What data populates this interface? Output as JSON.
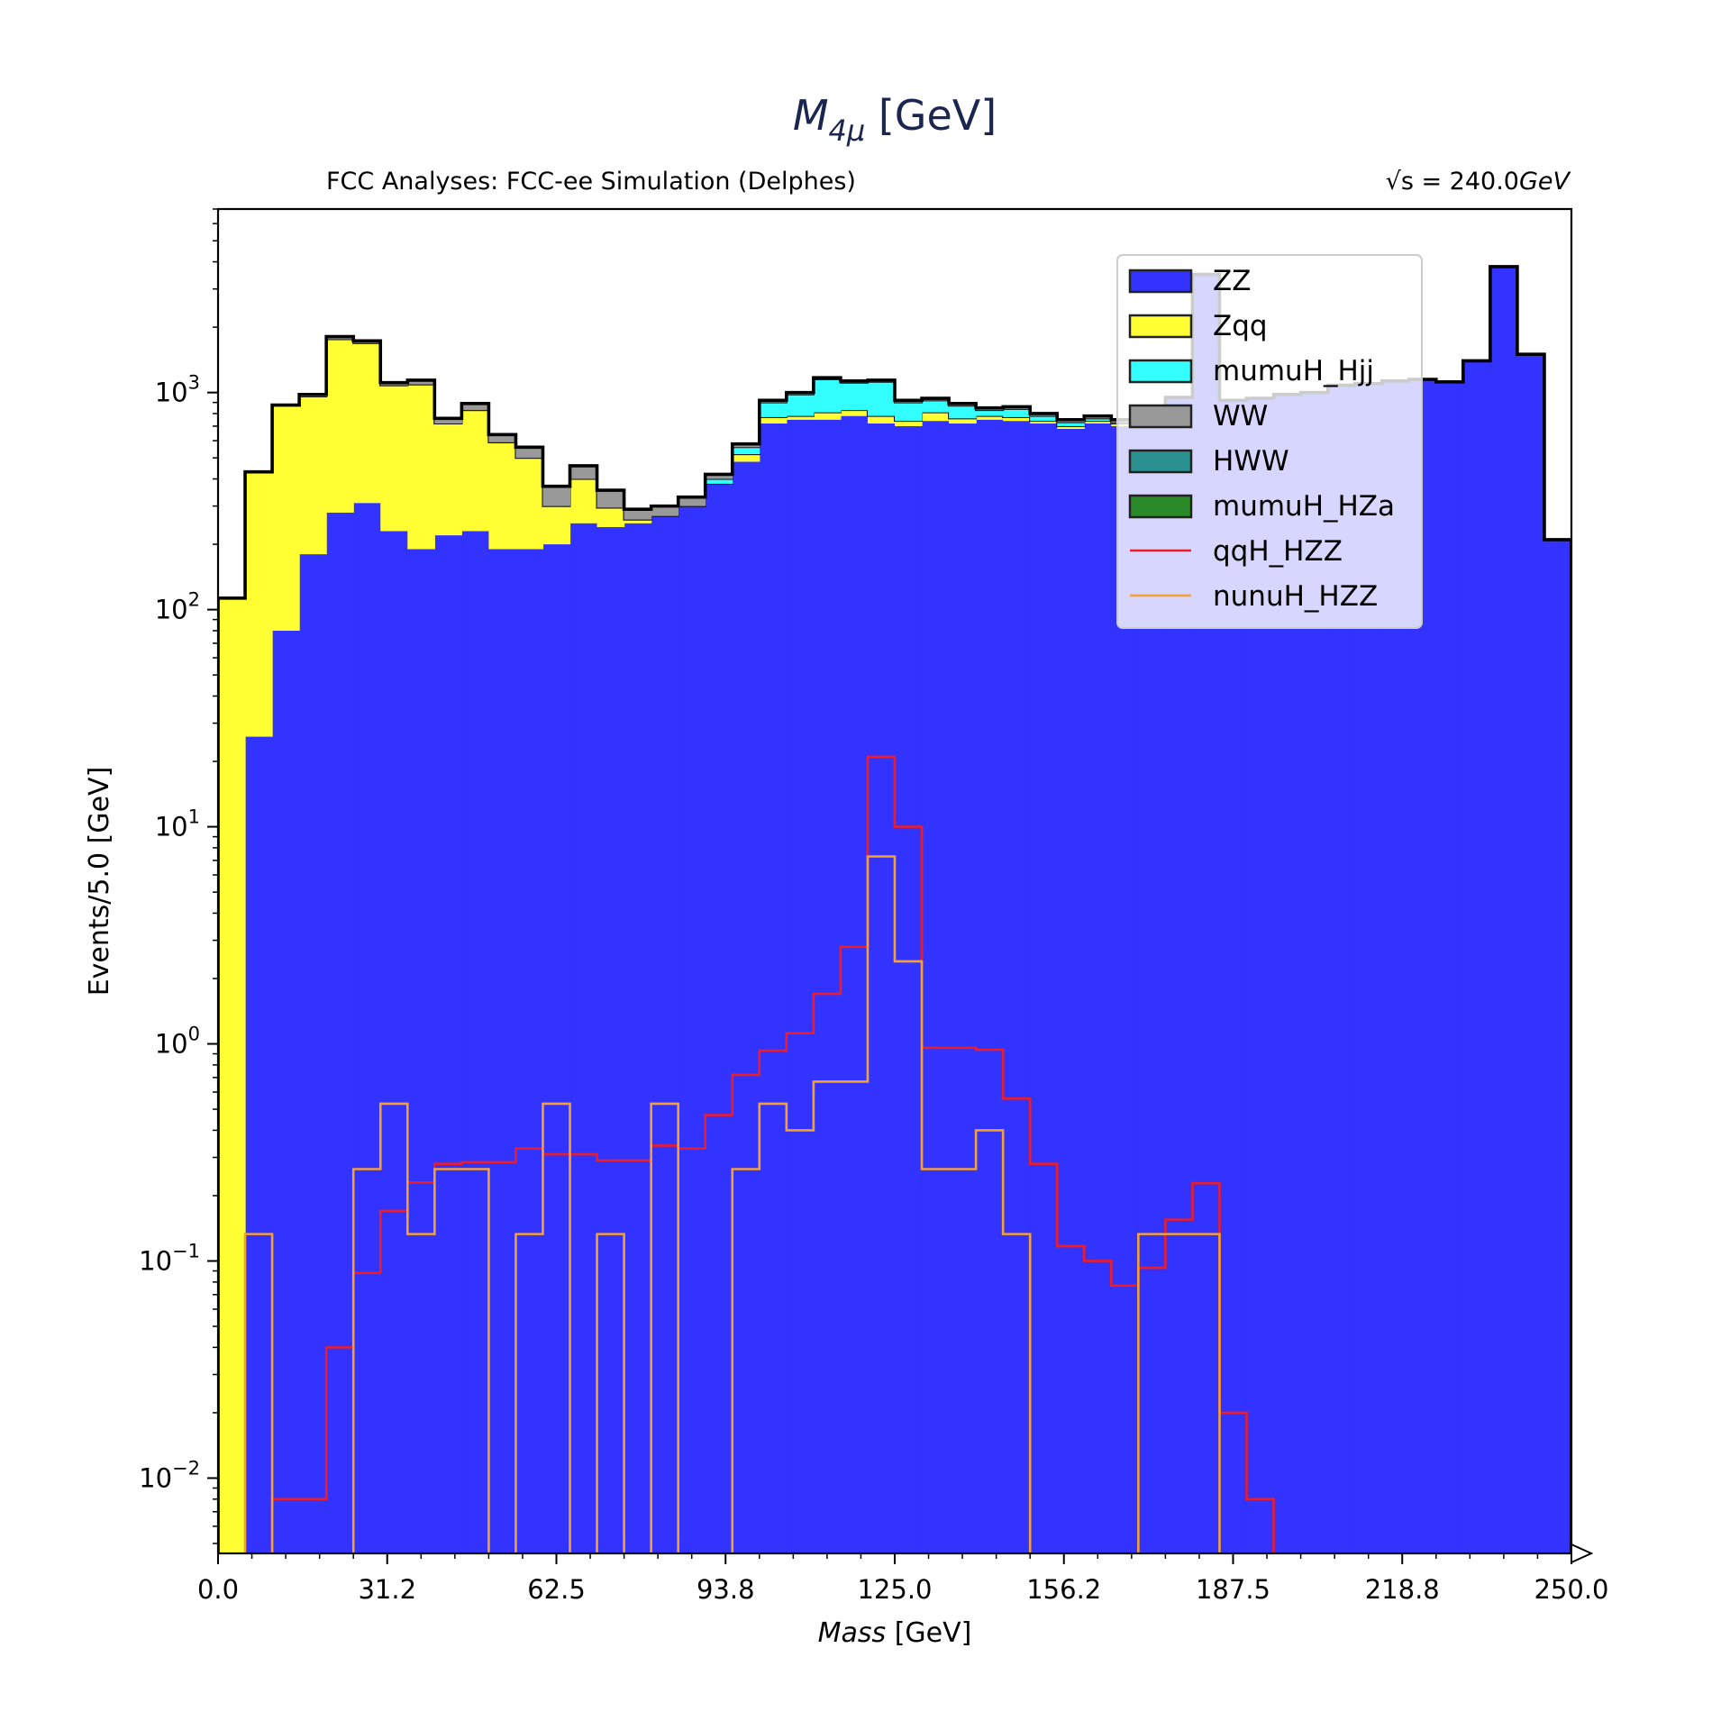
{
  "chart_data": {
    "type": "histogram",
    "title_main": "M",
    "title_sub": "4μ",
    "title_unit": " [GeV]",
    "subtitle_left": "FCC Analyses: FCC-ee Simulation (Delphes)",
    "subtitle_right_base": "√s = 240.0",
    "subtitle_right_unit": "GeV",
    "xlabel_italic": "Mass",
    "xlabel_unit": " [GeV]",
    "ylabel": "Events/5.0 [GeV]",
    "xlim": [
      0,
      250
    ],
    "ylim": [
      0.0045,
      7000
    ],
    "yscale": "log",
    "bin_width": 5,
    "x_ticks": [
      "0.0",
      "31.2",
      "62.5",
      "93.8",
      "125.0",
      "156.2",
      "187.5",
      "218.8",
      "250.0"
    ],
    "x_tick_values": [
      0,
      31.25,
      62.5,
      93.75,
      125,
      156.25,
      187.5,
      218.75,
      250
    ],
    "y_ticks": [
      {
        "value": 0.01,
        "base": "10",
        "exp": "−2"
      },
      {
        "value": 0.1,
        "base": "10",
        "exp": "−1"
      },
      {
        "value": 1,
        "base": "10",
        "exp": "0"
      },
      {
        "value": 10,
        "base": "10",
        "exp": "1"
      },
      {
        "value": 100,
        "base": "10",
        "exp": "2"
      },
      {
        "value": 1000,
        "base": "10",
        "exp": "3"
      }
    ],
    "legend_position": "upper-right",
    "stack": [
      {
        "name": "ZZ",
        "color": "#3333ff",
        "values": [
          0,
          26,
          80,
          180,
          280,
          310,
          230,
          190,
          220,
          230,
          190,
          190,
          200,
          250,
          240,
          250,
          270,
          300,
          380,
          480,
          720,
          750,
          750,
          780,
          720,
          700,
          740,
          720,
          750,
          740,
          720,
          680,
          720,
          700,
          720,
          950,
          3500,
          920,
          940,
          980,
          1000,
          1080,
          1100,
          1130,
          1150,
          1120,
          1400,
          3800,
          1500,
          210
        ]
      },
      {
        "name": "Zqq",
        "color": "#ffff33",
        "values": [
          113,
          405,
          795,
          780,
          1480,
          1380,
          850,
          900,
          500,
          600,
          400,
          310,
          100,
          150,
          55,
          10,
          0,
          0,
          0,
          40,
          50,
          30,
          60,
          50,
          60,
          40,
          70,
          40,
          30,
          30,
          20,
          20,
          20,
          20,
          10,
          0,
          0,
          0,
          0,
          0,
          0,
          0,
          0,
          0,
          0,
          0,
          0,
          0,
          0,
          0
        ]
      },
      {
        "name": "mumuH_Hjj",
        "color": "#33ffff",
        "values": [
          0,
          0,
          0,
          0,
          0,
          0,
          0,
          0,
          0,
          0,
          0,
          0,
          0,
          0,
          0,
          0,
          0,
          0,
          20,
          40,
          130,
          200,
          340,
          280,
          340,
          160,
          110,
          110,
          50,
          70,
          40,
          30,
          20,
          10,
          0,
          0,
          0,
          0,
          0,
          0,
          0,
          0,
          0,
          0,
          0,
          0,
          0,
          0,
          0,
          0
        ]
      },
      {
        "name": "WW",
        "color": "#999999",
        "values": [
          0,
          0,
          0,
          20,
          50,
          40,
          30,
          50,
          40,
          60,
          50,
          60,
          70,
          60,
          60,
          30,
          30,
          30,
          20,
          20,
          20,
          20,
          20,
          20,
          20,
          20,
          20,
          20,
          20,
          20,
          20,
          20,
          20,
          20,
          20,
          0,
          0,
          0,
          0,
          0,
          0,
          0,
          0,
          0,
          0,
          0,
          0,
          0,
          0,
          0
        ]
      },
      {
        "name": "HWW",
        "color": "#2a9090",
        "values": []
      },
      {
        "name": "mumuH_HZa",
        "color": "#2a8a2a",
        "values": []
      }
    ],
    "lines": [
      {
        "name": "qqH_HZZ",
        "color": "#ee1c25",
        "values": [
          0,
          0,
          0.008,
          0.008,
          0.04,
          0.088,
          0.17,
          0.23,
          0.28,
          0.285,
          0.285,
          0.33,
          0.31,
          0.31,
          0.29,
          0.29,
          0.34,
          0.33,
          0.47,
          0.72,
          0.93,
          1.12,
          1.7,
          2.8,
          21,
          10,
          0.96,
          0.96,
          0.94,
          0.56,
          0.28,
          0.117,
          0.1,
          0.077,
          0.093,
          0.155,
          0.228,
          0.02,
          0.008,
          0
        ]
      },
      {
        "name": "nunuH_HZZ",
        "color": "#f5a030",
        "values": [
          0,
          0.133,
          0,
          0,
          0,
          0.265,
          0.53,
          0.133,
          0.265,
          0.265,
          0,
          0.133,
          0.53,
          0,
          0.133,
          0,
          0.53,
          0,
          0,
          0.265,
          0.53,
          0.4,
          0.67,
          0.67,
          7.3,
          2.4,
          0.265,
          0.265,
          0.4,
          0.133,
          0,
          0,
          0,
          0,
          0.133,
          0.133,
          0.133,
          0,
          0,
          0
        ]
      }
    ]
  }
}
